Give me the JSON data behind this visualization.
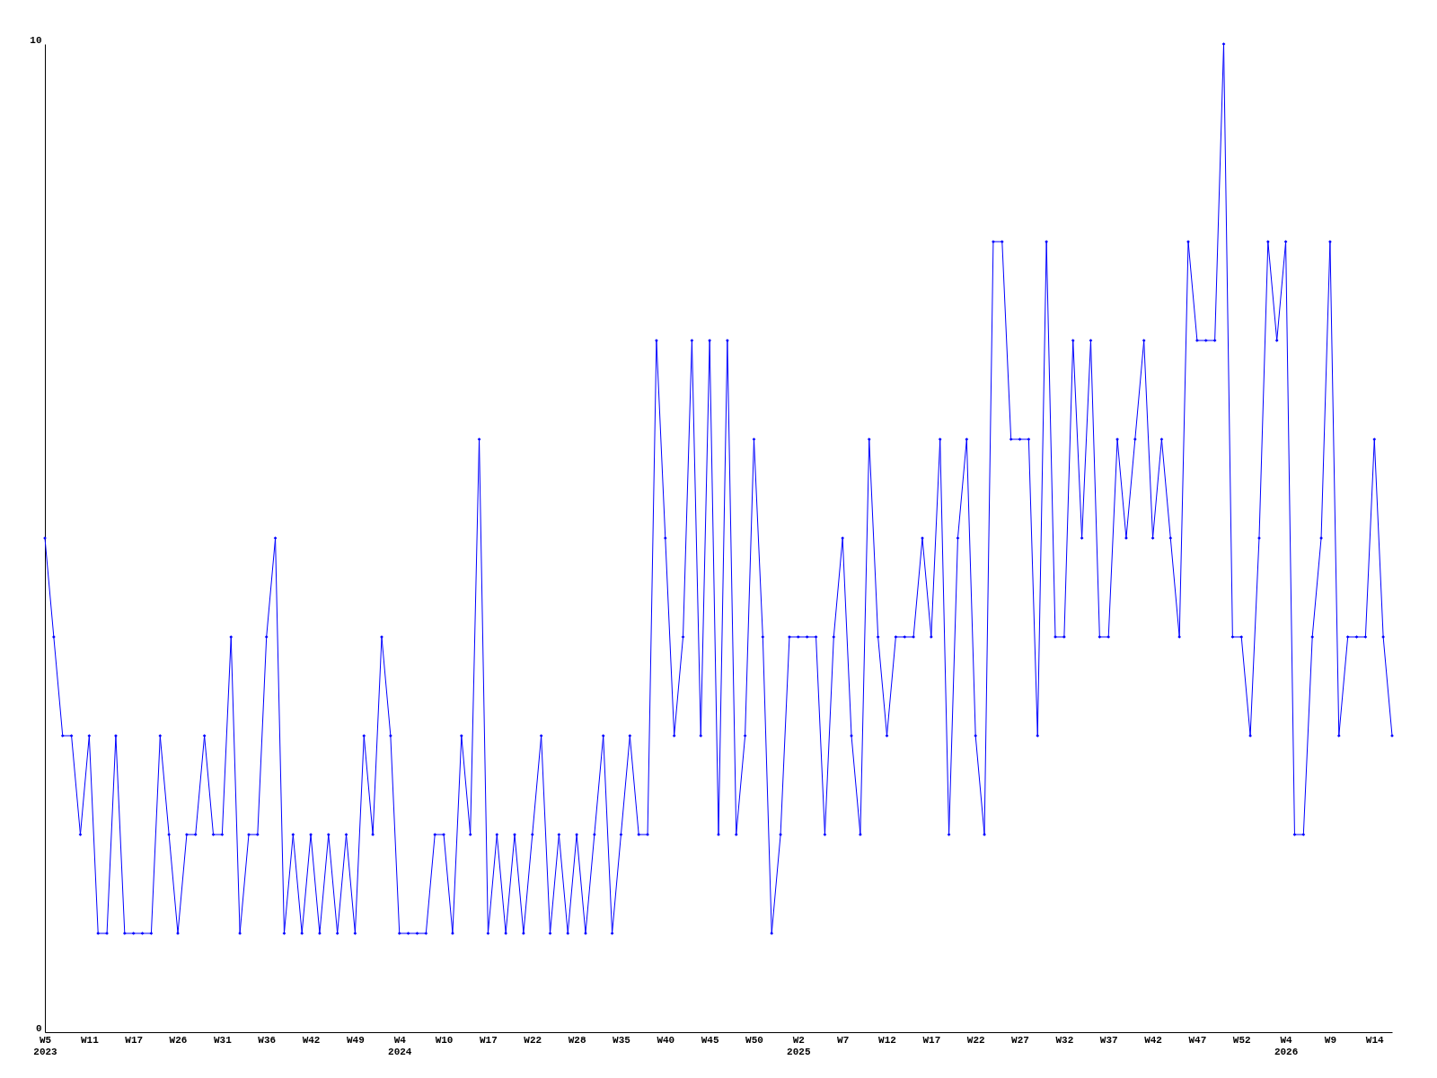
{
  "chart_data": {
    "type": "line",
    "categories": [
      "W5\n2023",
      null,
      null,
      null,
      null,
      "W11",
      null,
      null,
      null,
      null,
      "W17",
      null,
      null,
      null,
      null,
      "W26",
      null,
      null,
      null,
      null,
      "W31",
      null,
      null,
      null,
      null,
      "W36",
      null,
      null,
      null,
      null,
      "W42",
      null,
      null,
      null,
      null,
      "W49",
      null,
      null,
      null,
      null,
      "W4\n2024",
      null,
      null,
      null,
      null,
      "W10",
      null,
      null,
      null,
      null,
      "W17",
      null,
      null,
      null,
      null,
      "W22",
      null,
      null,
      null,
      null,
      "W28",
      null,
      null,
      null,
      null,
      "W35",
      null,
      null,
      null,
      null,
      "W40",
      null,
      null,
      null,
      null,
      "W45",
      null,
      null,
      null,
      null,
      "W50",
      null,
      null,
      null,
      null,
      "W2\n2025",
      null,
      null,
      null,
      null,
      "W7",
      null,
      null,
      null,
      null,
      "W12",
      null,
      null,
      null,
      null,
      "W17",
      null,
      null,
      null,
      null,
      "W22",
      null,
      null,
      null,
      null,
      "W27",
      null,
      null,
      null,
      null,
      "W32",
      null,
      null,
      null,
      null,
      "W37",
      null,
      null,
      null,
      null,
      "W42",
      null,
      null,
      null,
      null,
      "W47",
      null,
      null,
      null,
      null,
      "W52",
      null,
      null,
      null,
      null,
      "W4\n2026",
      null,
      null,
      null,
      null,
      "W9",
      null,
      null,
      null,
      null,
      "W14",
      null,
      null
    ],
    "series": [
      {
        "color": "#0000ff",
        "values": [
          5,
          4,
          3,
          3,
          2,
          3,
          1,
          1,
          3,
          1,
          1,
          1,
          1,
          3,
          2,
          1,
          2,
          2,
          3,
          2,
          2,
          4,
          1,
          2,
          2,
          4,
          5,
          1,
          2,
          1,
          2,
          1,
          2,
          1,
          2,
          1,
          3,
          2,
          4,
          3,
          1,
          1,
          1,
          1,
          2,
          2,
          1,
          3,
          2,
          6,
          1,
          2,
          1,
          2,
          1,
          2,
          3,
          1,
          2,
          1,
          2,
          1,
          2,
          3,
          1,
          2,
          3,
          2,
          2,
          7,
          5,
          3,
          4,
          7,
          3,
          7,
          2,
          7,
          2,
          3,
          6,
          4,
          1,
          2,
          4,
          4,
          4,
          4,
          2,
          4,
          5,
          3,
          2,
          6,
          4,
          3,
          4,
          4,
          4,
          5,
          4,
          6,
          2,
          5,
          6,
          3,
          2,
          8,
          8,
          6,
          6,
          6,
          3,
          8,
          4,
          4,
          7,
          5,
          7,
          4,
          4,
          6,
          5,
          6,
          7,
          5,
          6,
          5,
          4,
          8,
          7,
          7,
          7,
          10,
          4,
          4,
          3,
          5,
          8,
          7,
          8,
          2,
          2,
          4,
          5,
          8,
          3,
          4,
          4,
          4,
          6,
          4,
          3
        ]
      }
    ],
    "ylim": [
      0,
      10
    ],
    "yticks": [
      0,
      10
    ],
    "grid": false,
    "legend": false,
    "marker": "diamond"
  }
}
